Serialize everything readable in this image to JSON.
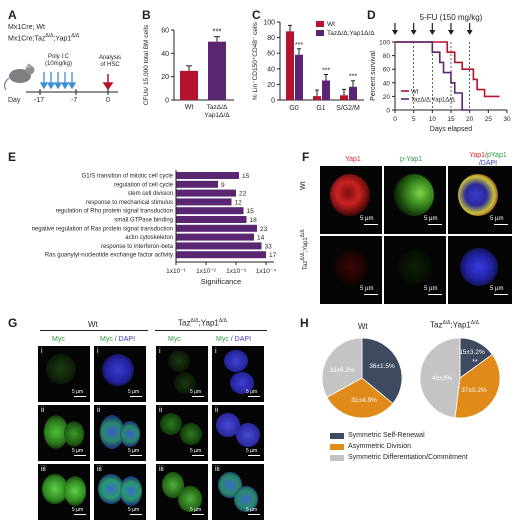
{
  "panels": {
    "A": {
      "letter": "A",
      "line1": "Mx1Cre; Wt",
      "line2": "Mx1Cre;Taz",
      "line2_sup": "Δ/Δ",
      "line2_tail": ";Yap1",
      "line2_sup2": "Δ/Δ",
      "treatment": "Poly I:C",
      "dose": "(10mg/kg)",
      "analysis": "Analysis\nof HSC",
      "day_label": "Day",
      "days": [
        "-17",
        "-7",
        "0"
      ]
    },
    "B": {
      "letter": "B"
    },
    "C": {
      "letter": "C"
    },
    "D": {
      "letter": "D",
      "title": "5-FU (150 mg/kg)"
    },
    "E": {
      "letter": "E"
    },
    "F": {
      "letter": "F",
      "col_titles": [
        "Yap1",
        "p-Yap1",
        "Yap1/pYap1",
        "/DAPI"
      ],
      "row_labels": [
        "Wt",
        "Taz"
      ],
      "row2_sup": "Δ/Δ",
      "row2_tail": ";Yap1",
      "row2_sup2": "Δ/Δ",
      "scale": "5 µm"
    },
    "G": {
      "letter": "G",
      "group_wt": "Wt",
      "group_ko": "Taz",
      "group_ko_sup": "Δ/Δ",
      "group_ko_tail": ";Yap1",
      "group_ko_sup2": "Δ/Δ",
      "col_myc": "Myc",
      "col_merge_a": "Myc",
      "col_merge_b": " / DAPI",
      "rows": [
        "i",
        "ii",
        "iii"
      ],
      "scale": "5 µm"
    },
    "H": {
      "letter": "H",
      "title_wt": "Wt",
      "title_ko": "Taz",
      "title_ko_sup": "Δ/Δ",
      "title_ko_tail": ";Yap1",
      "title_ko_sup2": "Δ/Δ",
      "legend": [
        "Symmetric Self-Renewal",
        "Asymmetric Division",
        "Symmetric Differentiation/Commitment"
      ]
    }
  },
  "colors": {
    "wt": "#b5122e",
    "ko": "#5a2672",
    "dark": "#3e4a5f",
    "orange": "#e08a19",
    "gray": "#c4c4c4"
  },
  "chart_data": [
    {
      "id": "B",
      "type": "bar",
      "categories": [
        "Wt",
        "TazΔ/Δ;Yap1Δ/Δ"
      ],
      "values": [
        25,
        50
      ],
      "ylabel": "CFUs/ 15,000 total BM cells",
      "yticks": [
        "0",
        "20",
        "40",
        "60"
      ],
      "ylim": [
        0,
        60
      ],
      "significance": "***"
    },
    {
      "id": "C",
      "type": "bar",
      "categories": [
        "G0",
        "G1",
        "S/G2/M"
      ],
      "series": [
        {
          "name": "Wt",
          "values": [
            88,
            5,
            6
          ]
        },
        {
          "name": "TazΔ/Δ;Yap1Δ/Δ",
          "values": [
            58,
            25,
            17
          ]
        }
      ],
      "ylabel": "% Lin⁻CD150⁺CD48⁻ cells",
      "yticks": [
        "0",
        "20",
        "40",
        "60",
        "80",
        "100"
      ],
      "ylim": [
        0,
        100
      ],
      "significance": "***"
    },
    {
      "id": "D",
      "type": "line",
      "xlabel": "Days elapsed",
      "ylabel": "Percent survival",
      "xticks": [
        "0",
        "5",
        "10",
        "15",
        "20",
        "25",
        "30"
      ],
      "yticks": [
        "0",
        "20",
        "40",
        "60",
        "80",
        "100"
      ],
      "xlim": [
        0,
        30
      ],
      "ylim": [
        0,
        100
      ],
      "injection_days": [
        0,
        5,
        10,
        15,
        20
      ],
      "series": [
        {
          "name": "Wt",
          "x": [
            0,
            14,
            14,
            16,
            16,
            18,
            18,
            21,
            21,
            22,
            22,
            24,
            24,
            28
          ],
          "y": [
            100,
            100,
            85,
            85,
            70,
            70,
            60,
            60,
            45,
            45,
            30,
            30,
            20,
            20
          ]
        },
        {
          "name": "TazΔ/Δ;Yap1Δ/Δ",
          "x": [
            0,
            10,
            10,
            12,
            12,
            13,
            13,
            15,
            15,
            16,
            16,
            18,
            18,
            20
          ],
          "y": [
            100,
            100,
            85,
            85,
            70,
            70,
            55,
            55,
            40,
            40,
            25,
            25,
            0,
            0
          ]
        }
      ]
    },
    {
      "id": "E",
      "type": "bar",
      "categories": [
        "G1/S transition of mitotic cell cycle",
        "regulation of cell cycle",
        "stem cell division",
        "response to mechanical stimulus",
        "regulation of Rho protein signal transduction",
        "small GTPase binding",
        "negative regulation of Ras protein signal transduction",
        "actin cytoskeleton",
        "response to interferon-beta",
        "Ras guanylyl-nucleotide exchange factor activity"
      ],
      "values": [
        15,
        9,
        22,
        12,
        15,
        18,
        23,
        14,
        33,
        17
      ],
      "significance_exp": [
        3.1,
        2.4,
        3.0,
        2.85,
        3.25,
        3.35,
        3.7,
        3.6,
        3.85,
        4.0
      ],
      "xlabel": "Significance",
      "xticks": [
        "1x10⁻¹",
        "1x10⁻²",
        "1x10⁻³",
        "1x10⁻⁴"
      ]
    },
    {
      "id": "H-Wt",
      "type": "pie",
      "labels": [
        "Symmetric Self-Renewal",
        "Asymmetric Division",
        "Symmetric Differentiation/Commitment"
      ],
      "values": [
        36,
        31,
        33
      ],
      "display": [
        "36±1.5%",
        "31±4.8%",
        "33±6.3%"
      ]
    },
    {
      "id": "H-KO",
      "type": "pie",
      "labels": [
        "Symmetric Self-Renewal",
        "Asymmetric Division",
        "Symmetric Differentiation/Commitment"
      ],
      "values": [
        15,
        37,
        48
      ],
      "display": [
        "15±3.2%",
        "37±0.2%",
        "48±3%"
      ],
      "significance": "**"
    }
  ]
}
